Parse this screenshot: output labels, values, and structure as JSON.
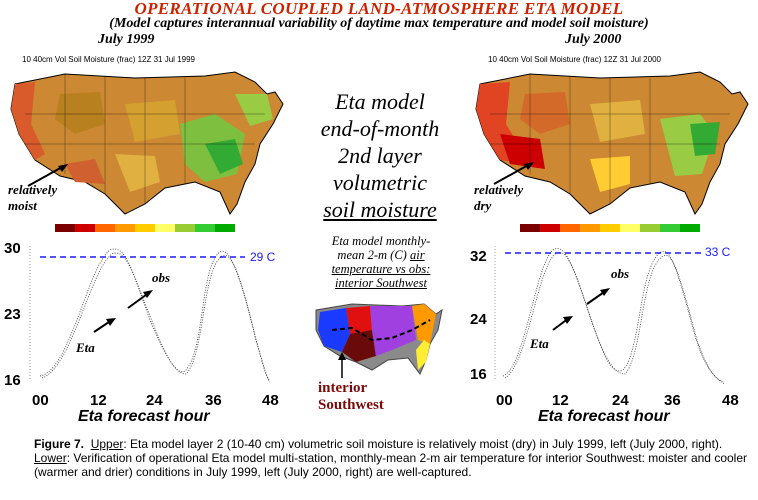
{
  "title": "OPERATIONAL COUPLED LAND-ATMOSPHERE ETA MODEL",
  "subtitle": "(Model captures interannual variability of daytime max temperature and model soil moisture)",
  "left": {
    "year": "July 1999",
    "map_header": "10   40cm Vol Soil Moisture (frac) 12Z 31 Jul 1999",
    "map_annotation_1": "relatively",
    "map_annotation_2": "moist",
    "y_ticks": [
      "30",
      "23",
      "16"
    ],
    "ref_label": "29 C",
    "x_ticks": [
      "00",
      "12",
      "24",
      "36",
      "48"
    ],
    "xlabel": "Eta forecast hour",
    "obs_label": "obs",
    "eta_label": "Eta"
  },
  "right": {
    "year": "July 2000",
    "map_header": "10   40cm Vol Soil Moisture (frac) 12Z 31 Jul 2000",
    "map_annotation_1": "relatively",
    "map_annotation_2": "dry",
    "y_ticks": [
      "32",
      "24",
      "16"
    ],
    "ref_label": "33 C",
    "x_ticks": [
      "00",
      "12",
      "24",
      "36",
      "48"
    ],
    "xlabel": "Eta forecast hour",
    "obs_label": "obs",
    "eta_label": "Eta"
  },
  "center": {
    "title_lines": [
      "Eta model",
      "end-of-month",
      "2nd layer",
      "volumetric"
    ],
    "title_underlined": "soil moisture",
    "sub_line_1": "Eta model monthly-",
    "sub_line_2": "mean 2-m (C) ",
    "sub_air": "air",
    "sub_line_3": "temperature vs obs:",
    "sub_line_4": "interior Southwest",
    "region_line_1": "interior",
    "region_line_2": "Southwest"
  },
  "caption": {
    "fig": "Figure 7.",
    "upper": "Upper",
    "upper_text": ":  Eta model layer 2 (10-40 cm) volumetric soil moisture is relatively moist (dry) in July 1999, left (July 2000, right).  ",
    "lower": "Lower",
    "lower_text": ":  Verification of operational Eta model multi-station, monthly-mean 2-m air temperature for interior Southwest: moister and cooler (warmer and drier) conditions in July 1999, left (July 2000, right) are well-captured."
  },
  "colors": {
    "title": "#cc2200",
    "ref_line": "#1a1aff",
    "colorbar": [
      "#7a0000",
      "#cc0000",
      "#ff6600",
      "#ff9900",
      "#ffcc00",
      "#ffff66",
      "#99cc33",
      "#33cc33",
      "#00aa00"
    ]
  }
}
